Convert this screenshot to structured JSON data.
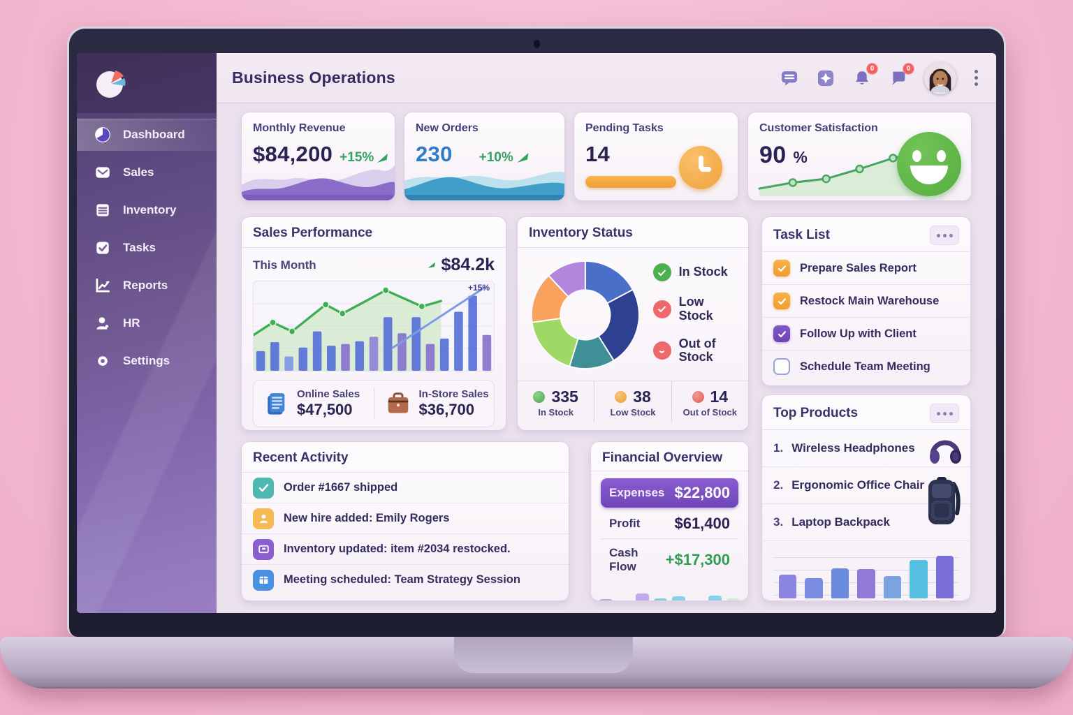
{
  "colors": {
    "accent_purple": "#7d52c0",
    "green": "#35a35f",
    "orange": "#f5a93b",
    "red": "#ed6a66",
    "blue": "#2d7dc8",
    "sidebar_purple": "#7b62a8"
  },
  "header": {
    "title": "Business Operations",
    "bell_badge": "0",
    "announcement_badge": "0"
  },
  "sidebar": {
    "items": [
      {
        "label": "Dashboard",
        "active": true
      },
      {
        "label": "Sales",
        "active": false
      },
      {
        "label": "Inventory",
        "active": false
      },
      {
        "label": "Tasks",
        "active": false
      },
      {
        "label": "Reports",
        "active": false
      },
      {
        "label": "HR",
        "active": false
      },
      {
        "label": "Settings",
        "active": false
      }
    ]
  },
  "kpis": {
    "revenue": {
      "label": "Monthly Revenue",
      "value": "$84,200",
      "delta": "+15%"
    },
    "orders": {
      "label": "New Orders",
      "value": "230",
      "delta": "+10%"
    },
    "pending": {
      "label": "Pending Tasks",
      "value": "14"
    },
    "satisfaction": {
      "label": "Customer Satisfaction",
      "value": "90",
      "unit": "%",
      "chart_data": {
        "type": "line",
        "points_pct": [
          [
            2,
            86
          ],
          [
            18,
            75
          ],
          [
            34,
            68
          ],
          [
            50,
            50
          ],
          [
            66,
            30
          ],
          [
            84,
            12
          ]
        ],
        "dot_indices": [
          1,
          2,
          3,
          4,
          5
        ],
        "line_color": "#46a45e",
        "area_color": "#cfe9cc"
      }
    }
  },
  "sales_performance": {
    "title": "Sales Performance",
    "period_label": "This Month",
    "period_value": "$84.2k",
    "trend_label": "+15%",
    "footer": {
      "online_label": "Online Sales",
      "online_value": "$47,500",
      "instore_label": "In-Store Sales",
      "instore_value": "$36,700"
    },
    "chart_data": {
      "type": "bar+line",
      "bar_values_pct": [
        22,
        32,
        16,
        26,
        44,
        28,
        30,
        33,
        38,
        60,
        42,
        60,
        30,
        36,
        66,
        84,
        40
      ],
      "bar_colors": [
        "#5b74d8",
        "#5b74d8",
        "#7f9ae4",
        "#5b74d8",
        "#5b74d8",
        "#5b74d8",
        "#8a77cf",
        "#5b74d8",
        "#9186d6",
        "#5b74d8",
        "#8a77cf",
        "#5b74d8",
        "#8a77cf",
        "#5b74d8",
        "#5b74d8",
        "#5b74d8",
        "#8a77cf"
      ],
      "line_points_pct": [
        [
          0,
          60
        ],
        [
          8,
          46
        ],
        [
          16,
          56
        ],
        [
          30,
          26
        ],
        [
          37,
          36
        ],
        [
          55,
          10
        ],
        [
          70,
          28
        ],
        [
          78,
          22
        ]
      ],
      "line_dot_indices": [
        1,
        2,
        3,
        4,
        5,
        6
      ],
      "line_color": "#3fae52",
      "area_color": "#b9e2a8",
      "trend_line_pct": [
        [
          58,
          74
        ],
        [
          96,
          7
        ]
      ],
      "trend_color": "#7d9be2",
      "annotation": "+15%"
    }
  },
  "inventory_status": {
    "title": "Inventory Status",
    "legend": [
      {
        "label": "In Stock",
        "color": "#4cb050"
      },
      {
        "label": "Low Stock",
        "color": "#ee6a6a"
      },
      {
        "label": "Out of Stock",
        "color": "#ee6a6a"
      }
    ],
    "stats": [
      {
        "value": "335",
        "label": "In Stock",
        "color": "#5cb85c"
      },
      {
        "value": "38",
        "label": "Low Stock",
        "color": "#f5a947"
      },
      {
        "value": "14",
        "label": "Out of Stock",
        "color": "#ed6a66"
      }
    ],
    "chart_data": {
      "type": "donut",
      "segments": [
        {
          "deg": 62,
          "color": "#4a6fc9"
        },
        {
          "deg": 86,
          "color": "#2e4191"
        },
        {
          "deg": 49,
          "color": "#3e8f96"
        },
        {
          "deg": 65,
          "color": "#9ed965"
        },
        {
          "deg": 55,
          "color": "#f9a25e"
        },
        {
          "deg": 43,
          "color": "#b286dd"
        }
      ]
    }
  },
  "task_list": {
    "title": "Task List",
    "items": [
      {
        "label": "Prepare Sales Report",
        "checked": true,
        "checkbox_color": "orange"
      },
      {
        "label": "Restock Main Warehouse",
        "checked": true,
        "checkbox_color": "orange"
      },
      {
        "label": "Follow Up with Client",
        "checked": true,
        "checkbox_color": "purple"
      },
      {
        "label": "Schedule Team Meeting",
        "checked": false,
        "checkbox_color": "none"
      }
    ]
  },
  "recent_activity": {
    "title": "Recent Activity",
    "items": [
      {
        "text": "Order #1667 shipped",
        "icon": "check"
      },
      {
        "text": "New hire added: Emily Rogers",
        "icon": "person"
      },
      {
        "text": "Inventory updated: item #2034 restocked.",
        "icon": "package"
      },
      {
        "text": "Meeting scheduled: Team Strategy Session",
        "icon": "calendar"
      }
    ]
  },
  "financial_overview": {
    "title": "Financial Overview",
    "expenses_label": "Expenses",
    "expenses_value": "$22,800",
    "profit_label": "Profit",
    "profit_value": "$61,400",
    "cashflow_label": "Cash Flow",
    "cashflow_value": "+$17,300",
    "chart_data": {
      "type": "bar",
      "values_pct": [
        58,
        52,
        78,
        62,
        68,
        55,
        70,
        62
      ],
      "colors": [
        "#b7a4e8",
        "#b2a0e4",
        "#bfaaee",
        "#85cce8",
        "#8ad0ea",
        "#7cc6e4",
        "#8ad0ea",
        "#d6ead9"
      ]
    }
  },
  "top_products": {
    "title": "Top Products",
    "items": [
      {
        "rank": "1.",
        "name": "Wireless Headphones"
      },
      {
        "rank": "2.",
        "name": "Ergonomic Office Chair"
      },
      {
        "rank": "3.",
        "name": "Laptop Backpack"
      }
    ],
    "chart_data": {
      "type": "bar",
      "values_pct": [
        45,
        38,
        57,
        55,
        42,
        72,
        80
      ],
      "colors": [
        "#8b84e0",
        "#7a8de0",
        "#6a8ade",
        "#9179d8",
        "#7ba3e0",
        "#55c0e0",
        "#7a6fd8"
      ]
    }
  }
}
